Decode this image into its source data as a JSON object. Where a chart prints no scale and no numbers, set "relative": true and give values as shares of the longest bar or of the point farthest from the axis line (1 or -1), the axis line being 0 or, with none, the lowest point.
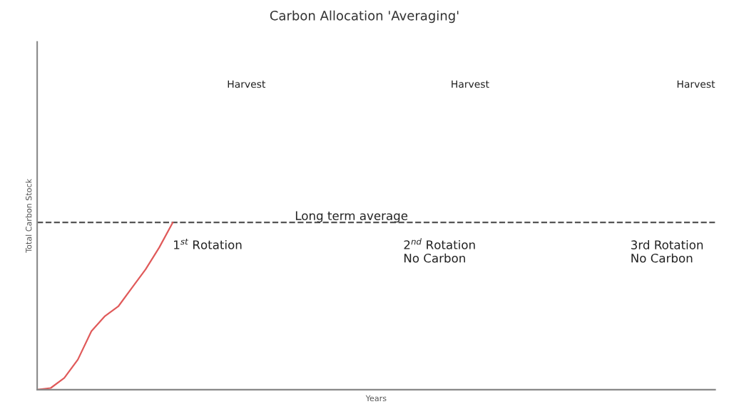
{
  "chart_data": {
    "type": "line",
    "title": "Carbon Allocation 'Averaging'",
    "xlabel": "Years",
    "ylabel": "Total Carbon Stock",
    "relative": true,
    "categories": [
      null,
      null,
      null,
      null,
      null,
      null,
      null,
      null,
      null,
      null,
      null,
      null,
      null,
      null,
      null,
      null,
      null,
      null,
      null,
      null,
      null,
      null,
      null,
      null,
      null,
      null,
      null,
      null,
      null,
      null,
      null,
      null,
      null,
      null,
      null,
      null,
      null,
      null,
      null,
      null,
      null,
      null,
      null,
      null,
      null,
      null,
      null,
      null,
      null,
      null,
      null
    ],
    "series": [
      {
        "color": "#e05a5a",
        "values": [
          0,
          0.01,
          0.07,
          0.18,
          0.35,
          0.44,
          0.5,
          0.61,
          0.72,
          0.85,
          1,
          null,
          null,
          null,
          null,
          null,
          null,
          null,
          null,
          null,
          null,
          null,
          null,
          null,
          null,
          null,
          null,
          null,
          null,
          null,
          null,
          null,
          null,
          null,
          null,
          null,
          null,
          null,
          null,
          null,
          null,
          null,
          null,
          null,
          null,
          null,
          null,
          null,
          null,
          null,
          null
        ]
      }
    ],
    "ref_lines": [
      {
        "axis": "y",
        "value": 1,
        "label": "Long term average",
        "color": "#555555",
        "line_style": "dashed"
      }
    ],
    "annotations": [
      "Harvest",
      "Harvest",
      "Harvest",
      "1$^{st}$ Rotation",
      "2$^{nd}$ Rotation\nNo Carbon",
      "3rd Rotation\nNo Carbon"
    ],
    "grid": false,
    "legend": false,
    "marker": "none",
    "line_style": "solid"
  }
}
